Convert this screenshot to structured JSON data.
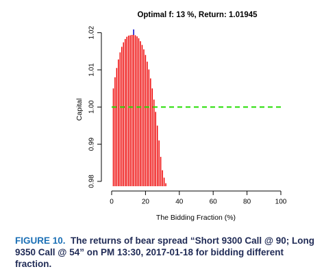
{
  "chart_data": {
    "type": "bar",
    "title": "Optimal f: 13 %, Return: 1.01945",
    "x_label": "The Bidding Fraction (%)",
    "y_label": "Capital",
    "x": [
      1,
      2,
      3,
      4,
      5,
      6,
      7,
      8,
      9,
      10,
      11,
      12,
      13,
      14,
      15,
      16,
      17,
      18,
      19,
      20,
      21,
      22,
      23,
      24,
      25,
      26,
      27,
      28,
      29,
      30,
      31,
      32
    ],
    "values": [
      1.005,
      1.008,
      1.0105,
      1.0128,
      1.0147,
      1.0162,
      1.0174,
      1.0183,
      1.0189,
      1.0192,
      1.0193,
      1.0194,
      1.01945,
      1.0193,
      1.019,
      1.0185,
      1.0177,
      1.0167,
      1.0155,
      1.014,
      1.0122,
      1.0101,
      1.0077,
      1.005,
      1.002,
      0.9987,
      0.995,
      0.991,
      0.9866,
      0.983,
      0.981,
      0.9795
    ],
    "color": "#ee0000",
    "optimal_x": 13,
    "optimal_color": "#0000cc",
    "reference_y": 1,
    "reference_color": "#22dd00",
    "xlim": [
      0,
      100
    ],
    "xticks": [
      0,
      20,
      40,
      60,
      80,
      100
    ],
    "ylim": [
      0.9787,
      1.0205
    ],
    "yticks": [
      0.98,
      0.99,
      {
        "value": 1,
        "label": "1.00"
      },
      1.01,
      1.02
    ]
  },
  "caption": {
    "label": "FIGURE 10.",
    "text": "The returns of bear spread “Short 9300 Call @ 90; Long 9350 Call @ 54” on PM 13:30, 2017-01-18 for bidding different fraction."
  }
}
